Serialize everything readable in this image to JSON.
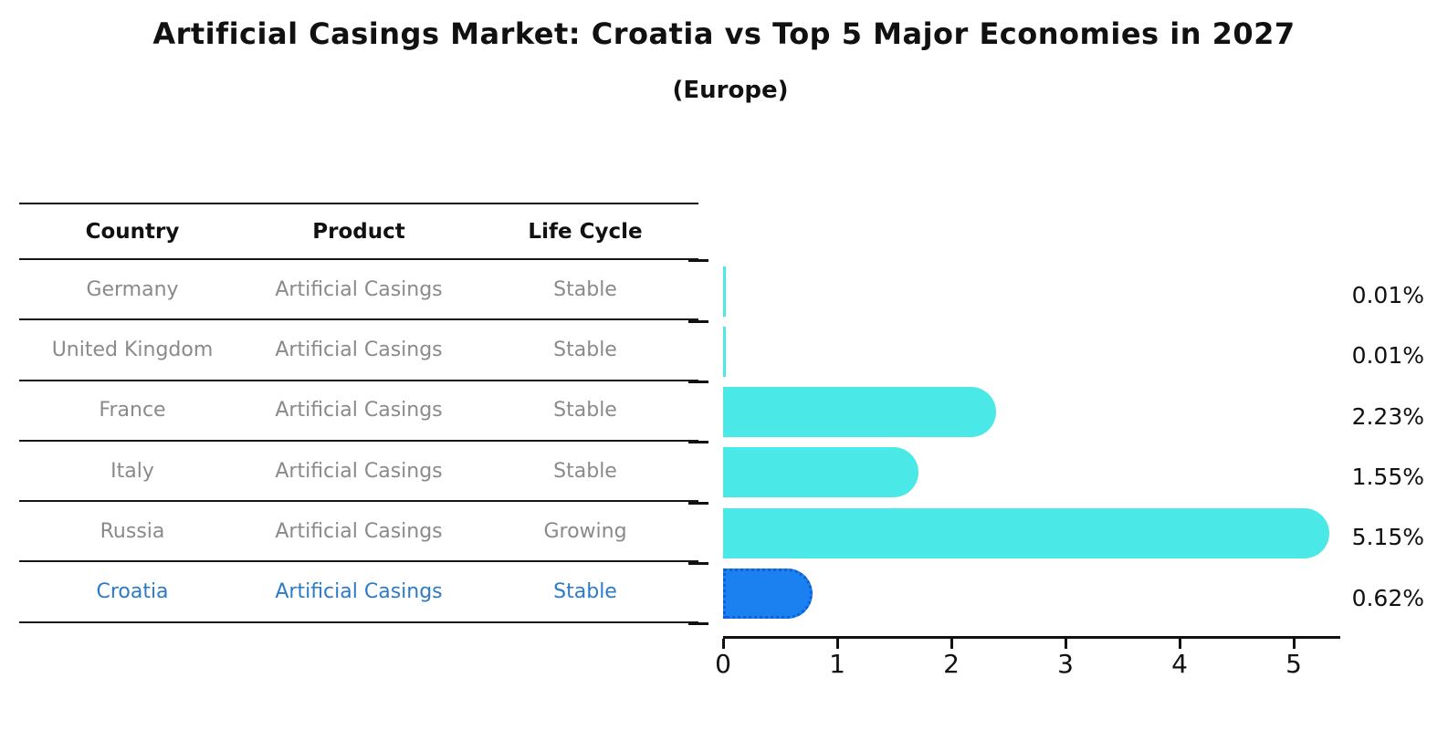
{
  "title": "Artificial Casings Market: Croatia vs Top 5 Major Economies in 2027",
  "subtitle": "(Europe)",
  "colors": {
    "bar": "#4ae8e6",
    "highlight_bar": "#1b80f0",
    "highlight_bar_border": "#0e5fd8",
    "highlight_text": "#2b7bc9",
    "row_text": "#8a8a8a",
    "axis": "#111111"
  },
  "table": {
    "headers": [
      "Country",
      "Product",
      "Life Cycle"
    ],
    "rows": [
      {
        "country": "Germany",
        "product": "Artificial Casings",
        "life_cycle": "Stable",
        "highlight": false
      },
      {
        "country": "United Kingdom",
        "product": "Artificial Casings",
        "life_cycle": "Stable",
        "highlight": false
      },
      {
        "country": "France",
        "product": "Artificial Casings",
        "life_cycle": "Stable",
        "highlight": false
      },
      {
        "country": "Italy",
        "product": "Artificial Casings",
        "life_cycle": "Stable",
        "highlight": false
      },
      {
        "country": "Russia",
        "product": "Artificial Casings",
        "life_cycle": "Growing",
        "highlight": false
      },
      {
        "country": "Croatia",
        "product": "Artificial Casings",
        "life_cycle": "Stable",
        "highlight": true
      }
    ]
  },
  "chart_data": {
    "type": "bar",
    "orientation": "horizontal",
    "categories": [
      "Germany",
      "United Kingdom",
      "France",
      "Italy",
      "Russia",
      "Croatia"
    ],
    "values": [
      0.01,
      0.01,
      2.23,
      1.55,
      5.15,
      0.62
    ],
    "labels": [
      "0.01%",
      "0.01%",
      "2.23%",
      "1.55%",
      "5.15%",
      "0.62%"
    ],
    "highlight_index": 5,
    "x_ticks": [
      "0",
      "1",
      "2",
      "3",
      "4",
      "5"
    ],
    "xlim": [
      0,
      5.4
    ],
    "xlabel": "",
    "ylabel": "",
    "grid": false,
    "legend": "none"
  }
}
